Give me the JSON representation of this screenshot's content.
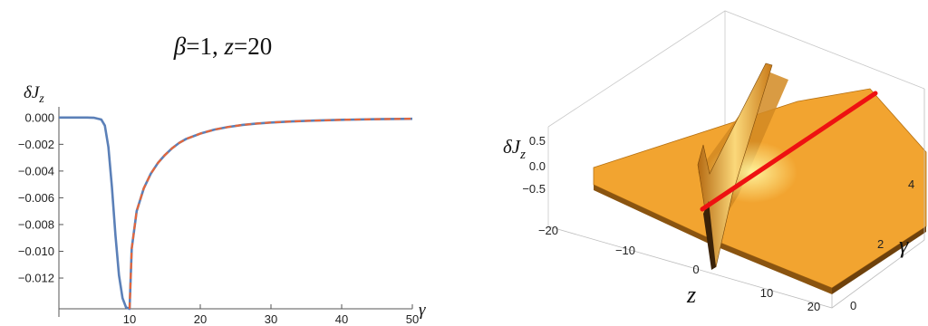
{
  "chart_data": [
    {
      "type": "line",
      "title_parts": {
        "beta_sym": "β",
        "beta_val": "=1, ",
        "z_sym": "z",
        "z_val": "=20"
      },
      "ylabel_parts": {
        "base": "δJ",
        "sub": "z"
      },
      "xlabel": "γ",
      "xlim": [
        0,
        50
      ],
      "ylim": [
        -0.0143,
        0.0008
      ],
      "x_ticks": [
        10,
        20,
        30,
        40,
        50
      ],
      "y_ticks": [
        0.0,
        -0.002,
        -0.004,
        -0.006,
        -0.008,
        -0.01,
        -0.012
      ],
      "y_tick_labels": [
        "0.000",
        "−0.002",
        "−0.004",
        "−0.006",
        "−0.008",
        "−0.010",
        "−0.012"
      ],
      "x_tick_labels": [
        "10",
        "20",
        "30",
        "40",
        "50"
      ],
      "series": [
        {
          "style": "solid",
          "color": "#5b80b8",
          "x": [
            0,
            2,
            4,
            5,
            6,
            6.5,
            7,
            7.5,
            8,
            8.5,
            9,
            9.5,
            10,
            10.3,
            11,
            12,
            13,
            14,
            15,
            16,
            17,
            18,
            19,
            20,
            22,
            24,
            26,
            28,
            30,
            33,
            36,
            40,
            45,
            50
          ],
          "y": [
            0,
            0,
            0,
            -2e-05,
            -0.00015,
            -0.0006,
            -0.0022,
            -0.0052,
            -0.0088,
            -0.0118,
            -0.0135,
            -0.0142,
            -0.0143,
            -0.0098,
            -0.007,
            -0.0053,
            -0.0042,
            -0.0034,
            -0.0028,
            -0.0023,
            -0.0019,
            -0.0016,
            -0.0014,
            -0.0012,
            -0.0009,
            -0.0007,
            -0.00055,
            -0.00045,
            -0.00037,
            -0.00029,
            -0.00023,
            -0.00017,
            -0.00012,
            -9e-05
          ]
        },
        {
          "style": "dashed",
          "color": "#e5663a",
          "x": [
            10,
            10.3,
            11,
            12,
            13,
            14,
            15,
            16,
            17,
            18,
            19,
            20,
            22,
            24,
            26,
            28,
            30,
            33,
            36,
            40,
            45,
            50
          ],
          "y": [
            -0.0143,
            -0.0098,
            -0.007,
            -0.0053,
            -0.0042,
            -0.0034,
            -0.0028,
            -0.0023,
            -0.0019,
            -0.0016,
            -0.0014,
            -0.0012,
            -0.0009,
            -0.0007,
            -0.00055,
            -0.00045,
            -0.00037,
            -0.00029,
            -0.00023,
            -0.00017,
            -0.00012,
            -9e-05
          ]
        }
      ]
    },
    {
      "type": "surface3d",
      "zlabel_parts": {
        "base": "δJ",
        "sub": "z"
      },
      "xlabel": "z",
      "ylabel": "γ",
      "x_tick_labels": [
        "−20",
        "−10",
        "0",
        "10",
        "20"
      ],
      "y_tick_labels": [
        "0",
        "2",
        "4"
      ],
      "z_tick_labels": [
        "0.5",
        "0.0",
        "−0.5"
      ],
      "surface_color": "#f2a430",
      "highlight_line_color": "#ee1111"
    }
  ]
}
